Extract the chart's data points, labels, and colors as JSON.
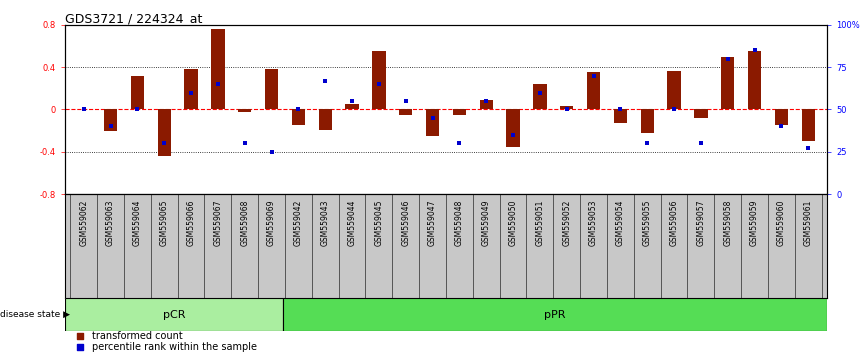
{
  "title": "GDS3721 / 224324_at",
  "samples": [
    "GSM559062",
    "GSM559063",
    "GSM559064",
    "GSM559065",
    "GSM559066",
    "GSM559067",
    "GSM559068",
    "GSM559069",
    "GSM559042",
    "GSM559043",
    "GSM559044",
    "GSM559045",
    "GSM559046",
    "GSM559047",
    "GSM559048",
    "GSM559049",
    "GSM559050",
    "GSM559051",
    "GSM559052",
    "GSM559053",
    "GSM559054",
    "GSM559055",
    "GSM559056",
    "GSM559057",
    "GSM559058",
    "GSM559059",
    "GSM559060",
    "GSM559061"
  ],
  "red_values": [
    0.0,
    -0.2,
    0.32,
    -0.44,
    0.38,
    0.76,
    -0.02,
    0.38,
    -0.15,
    -0.19,
    0.05,
    0.55,
    -0.05,
    -0.25,
    -0.05,
    0.09,
    -0.35,
    0.24,
    0.03,
    0.35,
    -0.13,
    -0.22,
    0.36,
    -0.08,
    0.5,
    0.55,
    -0.15,
    -0.3
  ],
  "blue_values": [
    50,
    40,
    50,
    30,
    60,
    65,
    30,
    25,
    50,
    67,
    55,
    65,
    55,
    45,
    30,
    55,
    35,
    60,
    50,
    70,
    50,
    30,
    50,
    30,
    80,
    85,
    40,
    27
  ],
  "pcr_count": 8,
  "ylim_left": [
    -0.8,
    0.8
  ],
  "ylim_right": [
    0,
    100
  ],
  "yticks_left": [
    -0.8,
    -0.4,
    0.0,
    0.4,
    0.8
  ],
  "ytick_labels_left": [
    "-0.8",
    "-0.4",
    "0",
    "0.4",
    "0.8"
  ],
  "yticks_right": [
    0,
    25,
    50,
    75,
    100
  ],
  "ytick_labels_right": [
    "0",
    "25",
    "50",
    "75",
    "100%"
  ],
  "red_color": "#8B1A00",
  "blue_color": "#0000CD",
  "bar_width": 0.5,
  "legend_labels": [
    "transformed count",
    "percentile rank within the sample"
  ],
  "disease_state_label": "disease state",
  "pcr_color": "#AAEEA0",
  "ppr_color": "#55DD55",
  "label_bg": "#C8C8C8",
  "title_fontsize": 9,
  "tick_fontsize": 6,
  "sample_fontsize": 5.5
}
